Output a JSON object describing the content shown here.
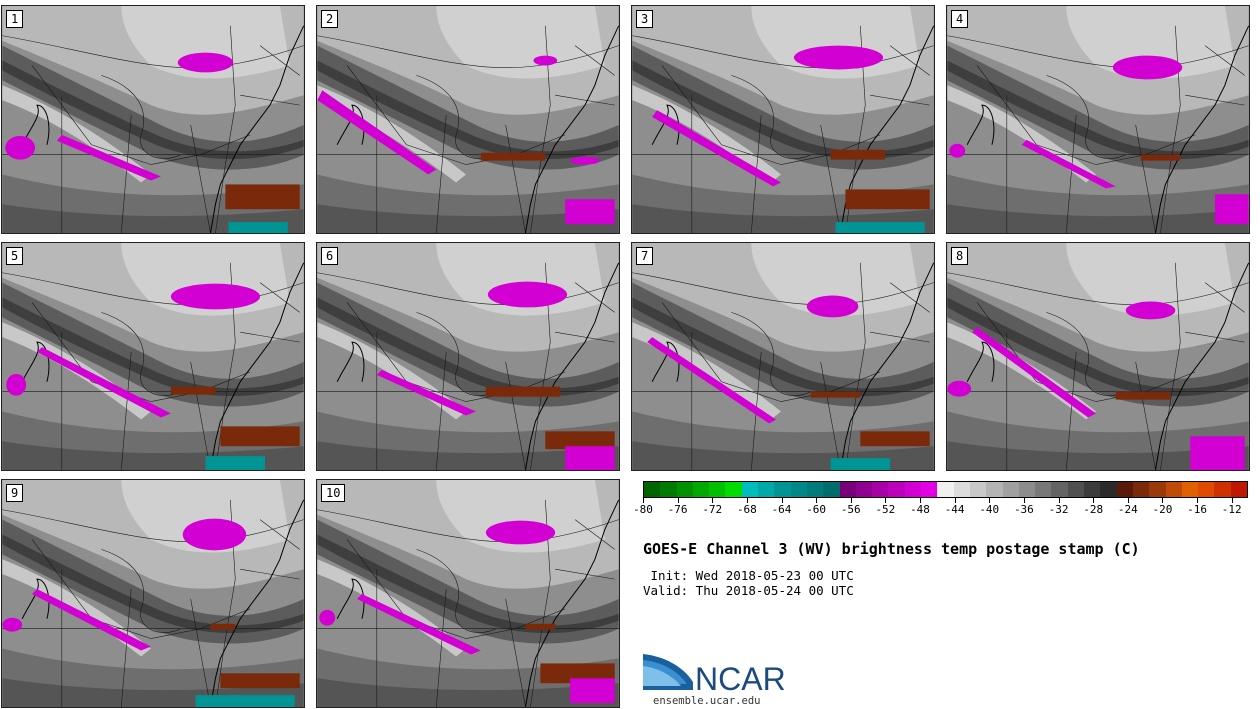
{
  "panels": [
    {
      "label": "1"
    },
    {
      "label": "2"
    },
    {
      "label": "3"
    },
    {
      "label": "4"
    },
    {
      "label": "5"
    },
    {
      "label": "6"
    },
    {
      "label": "7"
    },
    {
      "label": "8"
    },
    {
      "label": "9"
    },
    {
      "label": "10"
    }
  ],
  "colorbar": {
    "ticks": [
      "-80",
      "-76",
      "-72",
      "-68",
      "-64",
      "-60",
      "-56",
      "-52",
      "-48",
      "-44",
      "-40",
      "-36",
      "-32",
      "-28",
      "-24",
      "-20",
      "-16",
      "-12"
    ],
    "colors": [
      "#006400",
      "#007a00",
      "#009000",
      "#00a800",
      "#00c000",
      "#00dc00",
      "#00bcbc",
      "#00a8a8",
      "#009494",
      "#008888",
      "#007a7a",
      "#006c6c",
      "#7a007a",
      "#900090",
      "#a600a6",
      "#bc00bc",
      "#d200d2",
      "#e400e4",
      "#f0f0f0",
      "#dcdcdc",
      "#c8c8c8",
      "#b4b4b4",
      "#a0a0a0",
      "#8c8c8c",
      "#787878",
      "#646464",
      "#505050",
      "#3c3c3c",
      "#2a2a2a",
      "#5a1a0a",
      "#7a2a0a",
      "#9a3a0a",
      "#c04a08",
      "#e06000",
      "#e04a00",
      "#d03000",
      "#c01800"
    ]
  },
  "title": "GOES-E Channel 3 (WV) brightness temp postage stamp (C)",
  "init": " Init: Wed 2018-05-23 00 UTC",
  "valid": "Valid: Thu 2018-05-24 00 UTC",
  "logo": {
    "text": "NCAR",
    "url": "ensemble.ucar.edu",
    "brand_color": "#1a5fa0"
  }
}
